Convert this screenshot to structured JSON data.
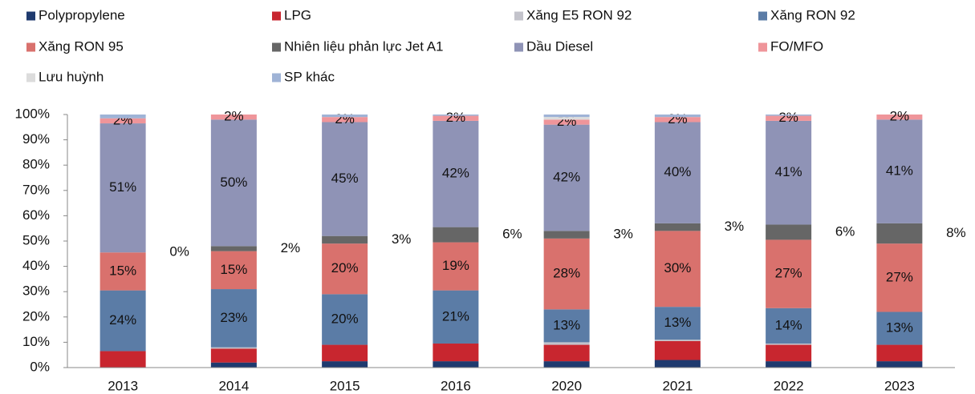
{
  "chart_data": {
    "type": "stacked_bar",
    "categories": [
      "2013",
      "2014",
      "2015",
      "2016",
      "2020",
      "2021",
      "2022",
      "2023"
    ],
    "ylim": [
      0,
      100
    ],
    "yticks": [
      {
        "value": 0,
        "label": "0%"
      },
      {
        "value": 10,
        "label": "10%"
      },
      {
        "value": 20,
        "label": "20%"
      },
      {
        "value": 30,
        "label": "30%"
      },
      {
        "value": 40,
        "label": "40%"
      },
      {
        "value": 50,
        "label": "50%"
      },
      {
        "value": 60,
        "label": "60%"
      },
      {
        "value": 70,
        "label": "70%"
      },
      {
        "value": 80,
        "label": "80%"
      },
      {
        "value": 90,
        "label": "90%"
      },
      {
        "value": 100,
        "label": "100%"
      }
    ],
    "series": [
      {
        "name": "Polypropylene",
        "color": "#1f3a6e",
        "values": [
          0,
          2,
          2.5,
          2.5,
          2.5,
          3,
          2.5,
          2.5
        ]
      },
      {
        "name": "LPG",
        "color": "#c8262f",
        "values": [
          6.5,
          5.5,
          6.5,
          7,
          6.5,
          7.5,
          6.5,
          6.5
        ]
      },
      {
        "name": "Xăng E5 RON 92",
        "color": "#c3c3cb",
        "values": [
          0,
          0.5,
          0,
          0,
          1,
          0.5,
          0.5,
          0
        ]
      },
      {
        "name": "Xăng RON 92",
        "color": "#5b7ca6",
        "values": [
          24,
          23,
          20,
          21,
          13,
          13,
          14,
          13
        ],
        "value_labels": [
          "24%",
          "23%",
          "20%",
          "21%",
          "13%",
          "13%",
          "14%",
          "13%"
        ]
      },
      {
        "name": "Xăng RON 95",
        "color": "#d9716d",
        "values": [
          15,
          15,
          20,
          19,
          28,
          30,
          27,
          27
        ],
        "value_labels": [
          "15%",
          "15%",
          "20%",
          "19%",
          "28%",
          "30%",
          "27%",
          "27%"
        ]
      },
      {
        "name": "Nhiên liệu phản lực Jet A1",
        "color": "#666666",
        "values": [
          0,
          2,
          3,
          6,
          3,
          3,
          6,
          8
        ],
        "value_labels": [
          "0%",
          "2%",
          "3%",
          "6%",
          "3%",
          "3%",
          "6%",
          "8%"
        ]
      },
      {
        "name": "Dầu Diesel",
        "color": "#8f93b6",
        "values": [
          51,
          50,
          45,
          42,
          42,
          40,
          41,
          41
        ],
        "value_labels": [
          "51%",
          "50%",
          "45%",
          "42%",
          "42%",
          "40%",
          "41%",
          "41%"
        ]
      },
      {
        "name": "FO/MFO",
        "color": "#ef959a",
        "values": [
          2,
          2,
          2,
          2,
          2,
          2,
          2,
          2
        ],
        "value_labels": [
          "2%",
          "2%",
          "2%",
          "2%",
          "2%",
          "2%",
          "2%",
          "2%"
        ]
      },
      {
        "name": "Lưu huỳnh",
        "color": "#dcdcdc",
        "values": [
          0,
          0,
          0,
          0,
          1,
          0,
          0,
          0
        ]
      },
      {
        "name": "SP khác",
        "color": "#9fb3d6",
        "values": [
          1.5,
          0,
          1,
          0.5,
          1,
          1,
          0.5,
          0
        ]
      }
    ]
  }
}
